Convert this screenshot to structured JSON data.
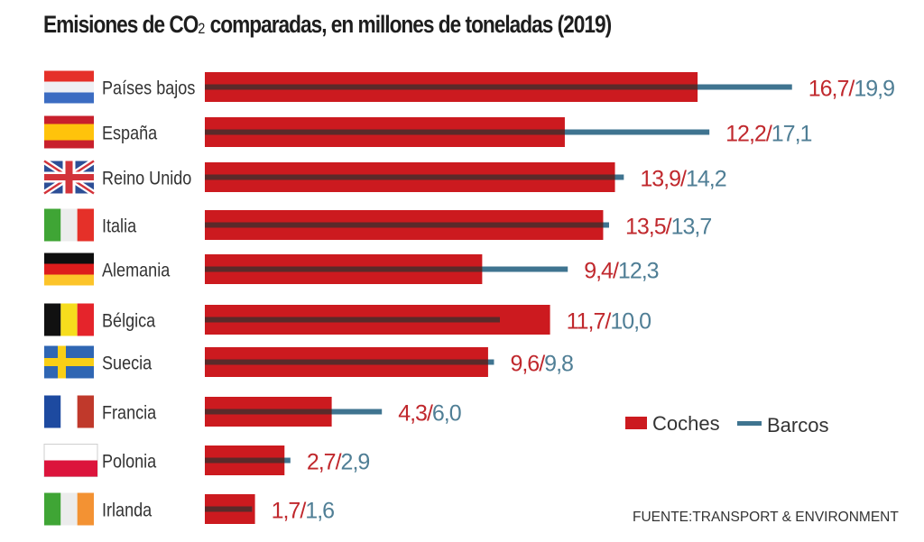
{
  "title_parts": {
    "before": "Emisiones de CO",
    "sub": "2",
    "after": " comparadas, en millones de toneladas (2019)"
  },
  "colors": {
    "coches": "#cc1a1f",
    "barcos": "#3f7490",
    "overlap": "#5a2a2a",
    "coches_text": "#c0282d",
    "barcos_text": "#4f7e95",
    "slash": "#c0282d"
  },
  "chart_data": {
    "type": "bar",
    "orientation": "horizontal",
    "title": "Emisiones de CO2 comparadas, en millones de toneladas (2019)",
    "xlabel": "",
    "ylabel": "",
    "xlim": [
      0,
      20
    ],
    "grid": false,
    "legend_position": "bottom-right",
    "categories": [
      "Países bajos",
      "España",
      "Reino Unido",
      "Italia",
      "Alemania",
      "Bélgica",
      "Suecia",
      "Francia",
      "Polonia",
      "Irlanda"
    ],
    "flags": [
      "netherlands-flag",
      "spain-flag",
      "uk-flag",
      "italy-flag",
      "germany-flag",
      "belgium-flag",
      "sweden-flag",
      "france-flag",
      "poland-flag",
      "ireland-flag"
    ],
    "series": [
      {
        "name": "Coches",
        "values": [
          16.7,
          12.2,
          13.9,
          13.5,
          9.4,
          11.7,
          9.6,
          4.3,
          2.7,
          1.7
        ]
      },
      {
        "name": "Barcos",
        "values": [
          19.9,
          17.1,
          14.2,
          13.7,
          12.3,
          10.0,
          9.8,
          6.0,
          2.9,
          1.6
        ]
      }
    ],
    "value_labels": {
      "coches": [
        "16,7",
        "12,2",
        "13,9",
        "13,5",
        "9,4",
        "11,7",
        "9,6",
        "4,3",
        "2,7",
        "1,7"
      ],
      "barcos": [
        "19,9",
        "17,1",
        "14,2",
        "13,7",
        "12,3",
        "10,0",
        "9,8",
        "6,0",
        "2,9",
        "1,6"
      ],
      "separator": "/"
    },
    "legend": [
      "Coches",
      "Barcos"
    ]
  },
  "source": "FUENTE:TRANSPORT & ENVIRONMENT"
}
